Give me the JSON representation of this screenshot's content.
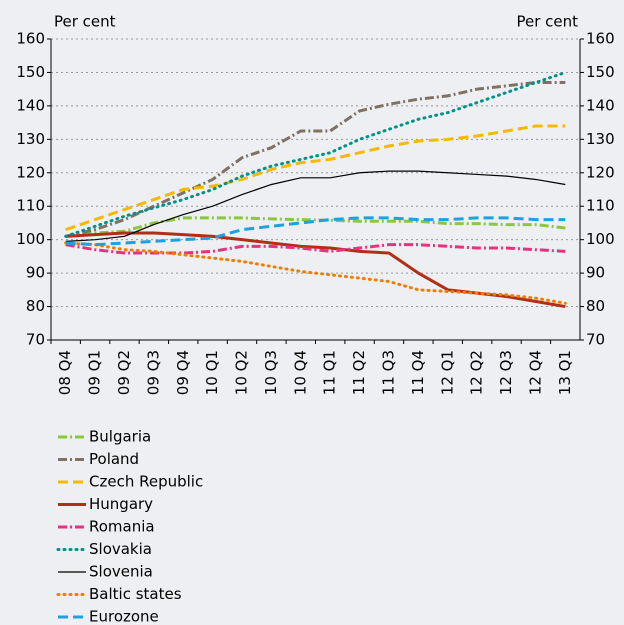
{
  "chart_data": {
    "type": "line",
    "y_label": "Per cent",
    "y2_label": "Per cent",
    "categories": [
      "08 Q4",
      "09 Q1",
      "09 Q2",
      "09 Q3",
      "09 Q4",
      "10 Q1",
      "10 Q2",
      "10 Q3",
      "10 Q4",
      "11 Q1",
      "11 Q2",
      "11 Q3",
      "11 Q4",
      "12 Q1",
      "12 Q2",
      "12 Q3",
      "12 Q4",
      "13 Q1"
    ],
    "ylim": [
      70,
      160
    ],
    "yticks": [
      70,
      80,
      90,
      100,
      110,
      120,
      130,
      140,
      150,
      160
    ],
    "y2lim": [
      70,
      160
    ],
    "y2ticks": [
      70,
      80,
      90,
      100,
      110,
      120,
      130,
      140,
      150,
      160
    ],
    "grid": true,
    "series": [
      {
        "name": "Bulgaria",
        "color": "#8cc63f",
        "style": "dashdot",
        "values": [
          101,
          102,
          102.5,
          105,
          106.5,
          106.5,
          106.5,
          106.2,
          106,
          105.8,
          105.5,
          105.5,
          105.5,
          104.8,
          104.8,
          104.5,
          104.5,
          103.5
        ]
      },
      {
        "name": "Poland",
        "color": "#7f7163",
        "style": "dashdot",
        "values": [
          101,
          103,
          106,
          110,
          114,
          118,
          124.5,
          127.5,
          132.5,
          132.5,
          138.5,
          140.5,
          142,
          143,
          145,
          146,
          147,
          147
        ]
      },
      {
        "name": "Czech Republic",
        "color": "#f7b800",
        "style": "dashed",
        "values": [
          103,
          106,
          109,
          112,
          115,
          116,
          118,
          121,
          123,
          124,
          126,
          128,
          129.5,
          130,
          131,
          132.5,
          134,
          134
        ]
      },
      {
        "name": "Hungary",
        "color": "#b22e14",
        "style": "solid",
        "values": [
          101,
          101.5,
          102,
          102,
          101.5,
          101,
          100,
          99,
          98,
          97.5,
          96.5,
          96,
          90,
          85,
          84,
          83,
          81.5,
          80
        ]
      },
      {
        "name": "Romania",
        "color": "#e5337f",
        "style": "dashdot",
        "values": [
          98.5,
          97,
          96,
          96,
          96,
          96.5,
          98,
          98,
          97.5,
          96.5,
          97.5,
          98.5,
          98.5,
          98,
          97.5,
          97.5,
          97,
          96.5
        ]
      },
      {
        "name": "Slovakia",
        "color": "#00918a",
        "style": "dotted",
        "values": [
          101,
          104,
          107,
          109.5,
          112,
          115,
          119,
          122,
          124,
          126,
          130,
          133,
          136,
          138,
          141,
          144,
          147,
          150
        ]
      },
      {
        "name": "Slovenia",
        "color": "#000000",
        "style": "thin",
        "values": [
          99.5,
          100,
          101,
          104.5,
          107.5,
          110,
          113.5,
          116.5,
          118.5,
          118.5,
          120,
          120.5,
          120.5,
          120,
          119.5,
          119,
          118,
          116.5
        ]
      },
      {
        "name": "Baltic states",
        "color": "#f07d00",
        "style": "dotted",
        "values": [
          99,
          98.5,
          97,
          96.5,
          95.5,
          94.5,
          93.5,
          92,
          90.5,
          89.5,
          88.5,
          87.5,
          85,
          84.5,
          84,
          83.5,
          82.5,
          81
        ]
      },
      {
        "name": "Eurozone",
        "color": "#1da1e0",
        "style": "dashed",
        "values": [
          99,
          98.5,
          99,
          99.5,
          100,
          100.5,
          103,
          104,
          105,
          106,
          106.5,
          106.5,
          106,
          106,
          106.5,
          106.5,
          106,
          106
        ]
      }
    ]
  }
}
